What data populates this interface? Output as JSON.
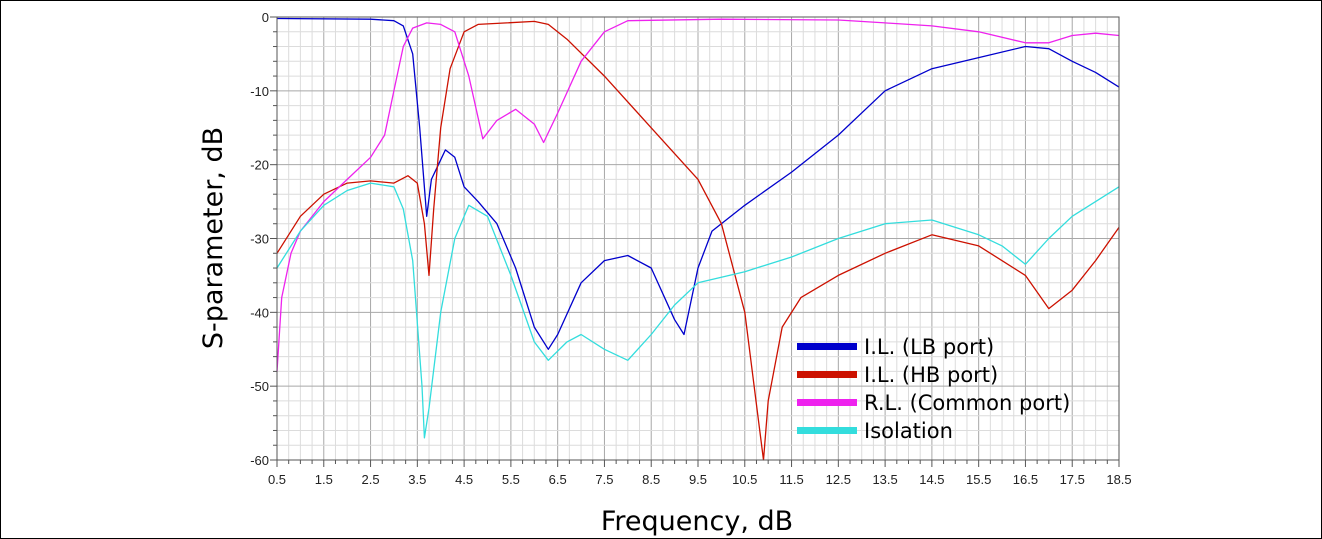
{
  "chart_data": {
    "type": "line",
    "xlabel": "Frequency, dB",
    "ylabel": "S-parameter, dB",
    "xlim": [
      0.5,
      18.5
    ],
    "ylim": [
      -60,
      0
    ],
    "x_ticks": [
      "0.5",
      "1.5",
      "2.5",
      "3.5",
      "4.5",
      "5.5",
      "6.5",
      "7.5",
      "8.5",
      "9.5",
      "10.5",
      "11.5",
      "12.5",
      "13.5",
      "14.5",
      "15.5",
      "16.5",
      "17.5",
      "18.5"
    ],
    "y_ticks": [
      "0",
      "-10",
      "-20",
      "-30",
      "-40",
      "-50",
      "-60"
    ],
    "grid": true,
    "legend_position": "bottom-right",
    "series": [
      {
        "name": "I.L. (LB port)",
        "color": "#0000cc",
        "points": [
          [
            0.5,
            -0.2
          ],
          [
            2.5,
            -0.3
          ],
          [
            3.0,
            -0.5
          ],
          [
            3.2,
            -1.2
          ],
          [
            3.4,
            -5
          ],
          [
            3.55,
            -15
          ],
          [
            3.7,
            -27
          ],
          [
            3.8,
            -22
          ],
          [
            3.95,
            -20
          ],
          [
            4.1,
            -18
          ],
          [
            4.3,
            -19
          ],
          [
            4.5,
            -23
          ],
          [
            4.8,
            -25
          ],
          [
            5.2,
            -28
          ],
          [
            5.6,
            -34
          ],
          [
            6.0,
            -42
          ],
          [
            6.3,
            -45
          ],
          [
            6.5,
            -43
          ],
          [
            7.0,
            -36
          ],
          [
            7.5,
            -33
          ],
          [
            8.0,
            -32.3
          ],
          [
            8.5,
            -34
          ],
          [
            9.0,
            -41
          ],
          [
            9.2,
            -43
          ],
          [
            9.5,
            -34
          ],
          [
            9.8,
            -29
          ],
          [
            10.5,
            -25.5
          ],
          [
            11.5,
            -21
          ],
          [
            12.5,
            -16
          ],
          [
            13.5,
            -10
          ],
          [
            14.5,
            -7
          ],
          [
            15.5,
            -5.5
          ],
          [
            16.5,
            -4
          ],
          [
            17.0,
            -4.3
          ],
          [
            17.5,
            -6
          ],
          [
            18.0,
            -7.5
          ],
          [
            18.5,
            -9.5
          ]
        ]
      },
      {
        "name": "I.L. (HB port)",
        "color": "#cc1100",
        "points": [
          [
            0.5,
            -32
          ],
          [
            1.0,
            -27
          ],
          [
            1.5,
            -24
          ],
          [
            2.0,
            -22.5
          ],
          [
            2.5,
            -22.2
          ],
          [
            3.0,
            -22.5
          ],
          [
            3.3,
            -21.5
          ],
          [
            3.5,
            -22.5
          ],
          [
            3.65,
            -28
          ],
          [
            3.75,
            -35
          ],
          [
            3.85,
            -26
          ],
          [
            4.0,
            -15
          ],
          [
            4.2,
            -7
          ],
          [
            4.5,
            -2
          ],
          [
            4.8,
            -1
          ],
          [
            6.0,
            -0.6
          ],
          [
            6.3,
            -1
          ],
          [
            6.7,
            -3
          ],
          [
            7.5,
            -8
          ],
          [
            8.5,
            -15
          ],
          [
            9.5,
            -22
          ],
          [
            10.0,
            -28
          ],
          [
            10.5,
            -40
          ],
          [
            10.8,
            -55
          ],
          [
            10.9,
            -60
          ],
          [
            11.0,
            -52
          ],
          [
            11.3,
            -42
          ],
          [
            11.7,
            -38
          ],
          [
            12.5,
            -35
          ],
          [
            13.5,
            -32
          ],
          [
            14.5,
            -29.5
          ],
          [
            15.5,
            -31
          ],
          [
            16.5,
            -35
          ],
          [
            17.0,
            -39.5
          ],
          [
            17.5,
            -37
          ],
          [
            18.0,
            -33
          ],
          [
            18.5,
            -28.5
          ]
        ]
      },
      {
        "name": "R.L. (Common port)",
        "color": "#ee22ee",
        "points": [
          [
            0.5,
            -48
          ],
          [
            0.6,
            -38
          ],
          [
            0.8,
            -32
          ],
          [
            1.0,
            -29
          ],
          [
            1.5,
            -25
          ],
          [
            2.0,
            -22
          ],
          [
            2.5,
            -19
          ],
          [
            2.8,
            -16
          ],
          [
            3.0,
            -10
          ],
          [
            3.2,
            -4
          ],
          [
            3.4,
            -1.5
          ],
          [
            3.7,
            -0.8
          ],
          [
            4.0,
            -1
          ],
          [
            4.3,
            -2
          ],
          [
            4.6,
            -8
          ],
          [
            4.9,
            -16.5
          ],
          [
            5.2,
            -14
          ],
          [
            5.6,
            -12.5
          ],
          [
            6.0,
            -14.5
          ],
          [
            6.2,
            -17
          ],
          [
            6.5,
            -13
          ],
          [
            7.0,
            -6
          ],
          [
            7.5,
            -2
          ],
          [
            8.0,
            -0.5
          ],
          [
            10.0,
            -0.3
          ],
          [
            12.5,
            -0.4
          ],
          [
            13.5,
            -0.8
          ],
          [
            14.5,
            -1.2
          ],
          [
            15.5,
            -2
          ],
          [
            16.5,
            -3.5
          ],
          [
            17.0,
            -3.5
          ],
          [
            17.5,
            -2.5
          ],
          [
            18.0,
            -2.2
          ],
          [
            18.5,
            -2.5
          ]
        ]
      },
      {
        "name": "Isolation",
        "color": "#33dddd",
        "points": [
          [
            0.5,
            -34
          ],
          [
            1.0,
            -29
          ],
          [
            1.5,
            -25.5
          ],
          [
            2.0,
            -23.5
          ],
          [
            2.5,
            -22.5
          ],
          [
            3.0,
            -23
          ],
          [
            3.2,
            -26
          ],
          [
            3.4,
            -33
          ],
          [
            3.6,
            -50
          ],
          [
            3.65,
            -57
          ],
          [
            3.75,
            -53
          ],
          [
            4.0,
            -40
          ],
          [
            4.3,
            -30
          ],
          [
            4.6,
            -25.5
          ],
          [
            5.0,
            -27
          ],
          [
            5.5,
            -35
          ],
          [
            6.0,
            -44
          ],
          [
            6.3,
            -46.5
          ],
          [
            6.7,
            -44
          ],
          [
            7.0,
            -43
          ],
          [
            7.5,
            -45
          ],
          [
            8.0,
            -46.5
          ],
          [
            8.5,
            -43
          ],
          [
            9.0,
            -39
          ],
          [
            9.5,
            -36
          ],
          [
            10.5,
            -34.5
          ],
          [
            11.5,
            -32.5
          ],
          [
            12.5,
            -30
          ],
          [
            13.5,
            -28
          ],
          [
            14.5,
            -27.5
          ],
          [
            15.5,
            -29.5
          ],
          [
            16.0,
            -31
          ],
          [
            16.5,
            -33.5
          ],
          [
            17.0,
            -30
          ],
          [
            17.5,
            -27
          ],
          [
            18.0,
            -25
          ],
          [
            18.5,
            -23
          ]
        ]
      }
    ]
  }
}
